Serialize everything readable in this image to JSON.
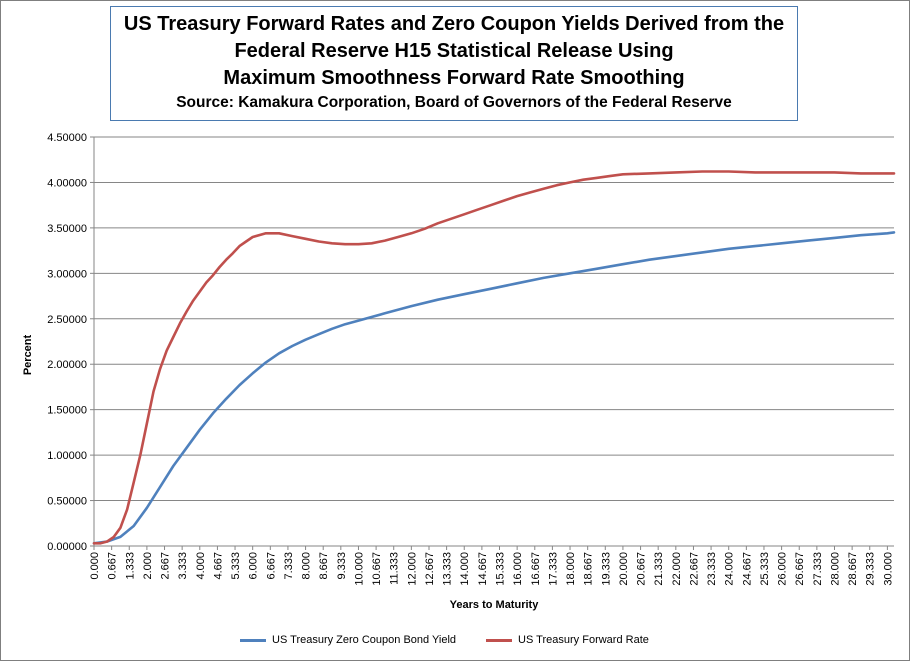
{
  "chart_data": {
    "type": "line",
    "title_lines": [
      "US Treasury Forward Rates and Zero Coupon Yields Derived from the",
      "Federal Reserve H15 Statistical Release Using",
      "Maximum Smoothness Forward Rate Smoothing"
    ],
    "subtitle": "Source: Kamakura Corporation, Board of Governors of the Federal Reserve",
    "xlabel": "Years to Maturity",
    "ylabel": "Percent",
    "xlim": [
      0,
      30.25
    ],
    "ylim": [
      0,
      4.5
    ],
    "y_ticks": [
      "0.00000",
      "0.50000",
      "1.00000",
      "1.50000",
      "2.00000",
      "2.50000",
      "3.00000",
      "3.50000",
      "4.00000",
      "4.50000"
    ],
    "x_ticks": [
      "0.000",
      "0.667",
      "1.333",
      "2.000",
      "2.667",
      "3.333",
      "4.000",
      "4.667",
      "5.333",
      "6.000",
      "6.667",
      "7.333",
      "8.000",
      "8.667",
      "9.333",
      "10.000",
      "10.667",
      "11.333",
      "12.000",
      "12.667",
      "13.333",
      "14.000",
      "14.667",
      "15.333",
      "16.000",
      "16.667",
      "17.333",
      "18.000",
      "18.667",
      "19.333",
      "20.000",
      "20.667",
      "21.333",
      "22.000",
      "22.667",
      "23.333",
      "24.000",
      "24.667",
      "25.333",
      "26.000",
      "26.667",
      "27.333",
      "28.000",
      "28.667",
      "29.333",
      "30.000"
    ],
    "grid": "horizontal",
    "legend": "bottom",
    "series": [
      {
        "name": "US Treasury Zero Coupon Bond Yield",
        "color": "#4f81bd",
        "x": [
          0,
          0.5,
          1,
          1.5,
          2,
          2.5,
          3,
          3.5,
          4,
          4.5,
          5,
          5.5,
          6,
          6.5,
          7,
          7.5,
          8,
          8.5,
          9,
          9.5,
          10,
          11,
          12,
          13,
          14,
          15,
          16,
          17,
          18,
          19,
          20,
          21,
          22,
          23,
          24,
          25,
          26,
          27,
          28,
          29,
          30,
          30.25
        ],
        "y": [
          0.03,
          0.05,
          0.1,
          0.22,
          0.42,
          0.65,
          0.88,
          1.08,
          1.28,
          1.46,
          1.62,
          1.77,
          1.9,
          2.02,
          2.12,
          2.2,
          2.27,
          2.33,
          2.39,
          2.44,
          2.48,
          2.56,
          2.64,
          2.71,
          2.77,
          2.83,
          2.89,
          2.95,
          3.0,
          3.05,
          3.1,
          3.15,
          3.19,
          3.23,
          3.27,
          3.3,
          3.33,
          3.36,
          3.39,
          3.42,
          3.44,
          3.45
        ]
      },
      {
        "name": "US Treasury Forward Rate",
        "color": "#c0504d",
        "x": [
          0,
          0.25,
          0.5,
          0.75,
          1,
          1.25,
          1.5,
          1.75,
          2,
          2.25,
          2.5,
          2.75,
          3,
          3.25,
          3.5,
          3.75,
          4,
          4.25,
          4.5,
          4.75,
          5,
          5.25,
          5.5,
          5.75,
          6,
          6.5,
          7,
          7.5,
          8,
          8.5,
          9,
          9.5,
          10,
          10.5,
          11,
          11.5,
          12,
          12.5,
          13,
          13.5,
          14,
          14.5,
          15,
          15.5,
          16,
          16.5,
          17,
          17.5,
          18,
          18.5,
          19,
          19.5,
          20,
          21,
          22,
          23,
          24,
          25,
          26,
          27,
          28,
          29,
          30,
          30.25
        ],
        "y": [
          0.03,
          0.03,
          0.05,
          0.1,
          0.2,
          0.4,
          0.7,
          1.0,
          1.35,
          1.7,
          1.95,
          2.15,
          2.3,
          2.45,
          2.58,
          2.7,
          2.8,
          2.9,
          2.98,
          3.07,
          3.15,
          3.22,
          3.3,
          3.35,
          3.4,
          3.44,
          3.44,
          3.41,
          3.38,
          3.35,
          3.33,
          3.32,
          3.32,
          3.33,
          3.36,
          3.4,
          3.44,
          3.49,
          3.55,
          3.6,
          3.65,
          3.7,
          3.75,
          3.8,
          3.85,
          3.89,
          3.93,
          3.97,
          4.0,
          4.03,
          4.05,
          4.07,
          4.09,
          4.1,
          4.11,
          4.12,
          4.12,
          4.11,
          4.11,
          4.11,
          4.11,
          4.1,
          4.1,
          4.1
        ]
      }
    ]
  }
}
